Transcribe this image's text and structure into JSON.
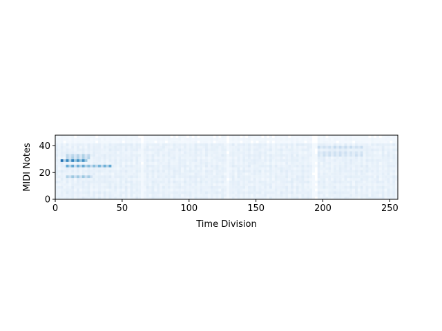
{
  "chart_data": {
    "type": "heatmap",
    "title": "",
    "xlabel": "Time Division",
    "ylabel": "MIDI Notes",
    "xlim": [
      0,
      256
    ],
    "ylim": [
      0,
      48
    ],
    "x_ticks": [
      0,
      50,
      100,
      150,
      200,
      250
    ],
    "y_ticks": [
      0,
      20,
      40
    ],
    "colormap": [
      "#f7fbff",
      "#deebf7",
      "#c6dbef",
      "#9ecae1",
      "#6baed6",
      "#3182bd",
      "#08519c"
    ],
    "grid": false,
    "legend": "none",
    "bright_regions": [
      {
        "x": [
          4,
          22
        ],
        "note": 28,
        "level": 0.95
      },
      {
        "x": [
          8,
          40
        ],
        "note": 24,
        "level": 0.75
      },
      {
        "x": [
          8,
          26
        ],
        "note": 16,
        "level": 0.55
      },
      {
        "x": [
          8,
          24
        ],
        "note": 31,
        "level": 0.45
      },
      {
        "x": [
          196,
          228
        ],
        "note": 38,
        "level": 0.35
      },
      {
        "x": [
          196,
          228
        ],
        "note": 33,
        "level": 0.3
      }
    ],
    "background_level": 0.08,
    "note_period": 2,
    "time_period": 4
  }
}
